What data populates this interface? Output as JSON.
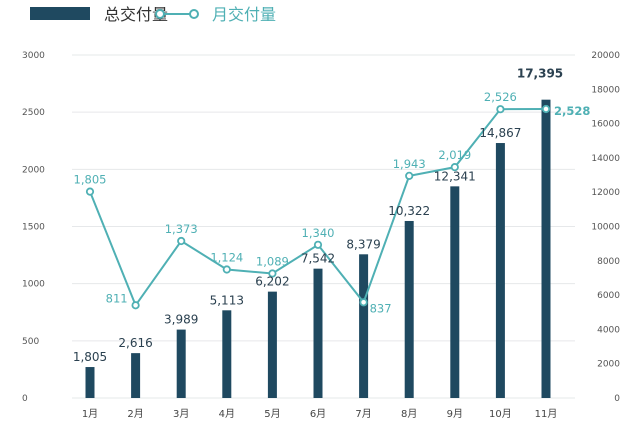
{
  "chart_data": {
    "type": "bar+line",
    "categories": [
      "1月",
      "2月",
      "3月",
      "4月",
      "5月",
      "6月",
      "7月",
      "8月",
      "9月",
      "10月",
      "11月"
    ],
    "series": [
      {
        "name": "总交付量",
        "type": "bar",
        "axis": "right",
        "color": "#1f4960",
        "values": [
          1805,
          2616,
          3989,
          5113,
          6202,
          7542,
          8379,
          10322,
          12341,
          14867,
          17395
        ],
        "labels": [
          "1,805",
          "2,616",
          "3,989",
          "5,113",
          "6,202",
          "7,542",
          "8,379",
          "10,322",
          "12,341",
          "14,867",
          "17,395"
        ]
      },
      {
        "name": "月交付量",
        "type": "line",
        "axis": "left",
        "color": "#4fb0b4",
        "values": [
          1805,
          811,
          1373,
          1124,
          1089,
          1340,
          837,
          1943,
          2019,
          2526,
          2528
        ],
        "labels": [
          "1,805",
          "811",
          "1,373",
          "1,124",
          "1,089",
          "1,340",
          "837",
          "1,943",
          "2,019",
          "2,526",
          "2,528"
        ]
      }
    ],
    "y_left": {
      "range": [
        0,
        3000
      ],
      "ticks": [
        "0",
        "500",
        "1000",
        "1500",
        "2000",
        "2500",
        "3000"
      ]
    },
    "y_right": {
      "range": [
        0,
        20000
      ],
      "ticks": [
        "0",
        "2000",
        "4000",
        "6000",
        "8000",
        "10000",
        "12000",
        "14000",
        "16000",
        "18000",
        "20000"
      ]
    },
    "grid": true,
    "legend": "top-left"
  }
}
